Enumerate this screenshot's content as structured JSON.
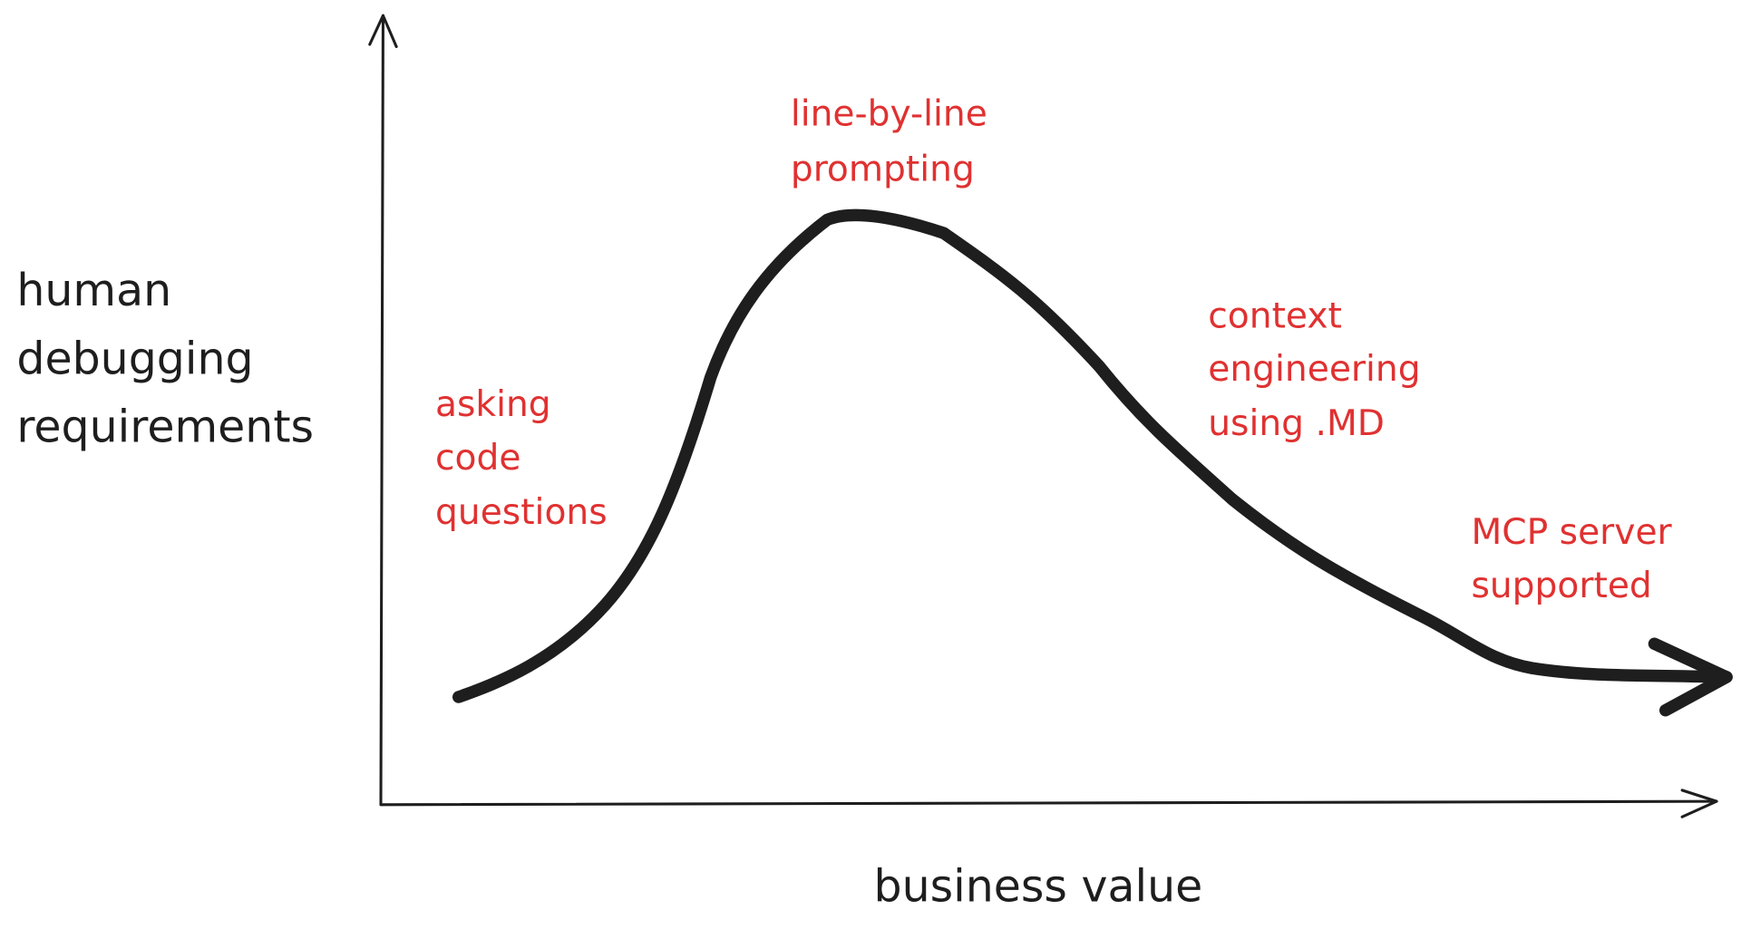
{
  "y_label": [
    "human",
    "debugging",
    "requirements"
  ],
  "x_label": "business value",
  "annotations": [
    {
      "lines": [
        "asking",
        "code",
        "questions"
      ]
    },
    {
      "lines": [
        "line-by-line",
        "prompting"
      ]
    },
    {
      "lines": [
        "context",
        "engineering",
        "using .MD"
      ]
    },
    {
      "lines": [
        "MCP server",
        "supported"
      ]
    }
  ]
}
